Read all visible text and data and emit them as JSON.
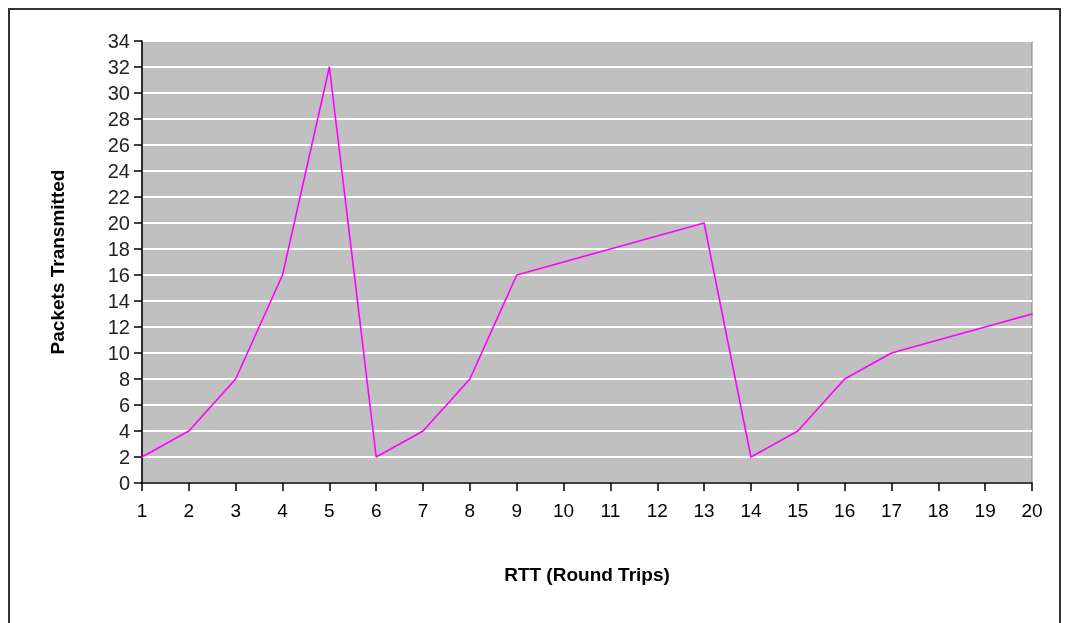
{
  "chart_data": {
    "type": "line",
    "xlabel": "RTT (Round Trips)",
    "ylabel": "Packets Transmitted",
    "categories": [
      "1",
      "2",
      "3",
      "4",
      "5",
      "6",
      "7",
      "8",
      "9",
      "10",
      "11",
      "12",
      "13",
      "14",
      "15",
      "16",
      "17",
      "18",
      "19",
      "20"
    ],
    "series": [
      {
        "color": "#ff00ff",
        "values": [
          2,
          4,
          8,
          16,
          32,
          2,
          4,
          8,
          16,
          17,
          18,
          19,
          20,
          2,
          4,
          8,
          10,
          11,
          12,
          13
        ]
      }
    ],
    "ylim": [
      0,
      34
    ],
    "yticks": [
      0,
      2,
      4,
      6,
      8,
      10,
      12,
      14,
      16,
      18,
      20,
      22,
      24,
      26,
      28,
      30,
      32,
      34
    ],
    "grid": "y",
    "marker": "none",
    "line_style": "solid"
  }
}
